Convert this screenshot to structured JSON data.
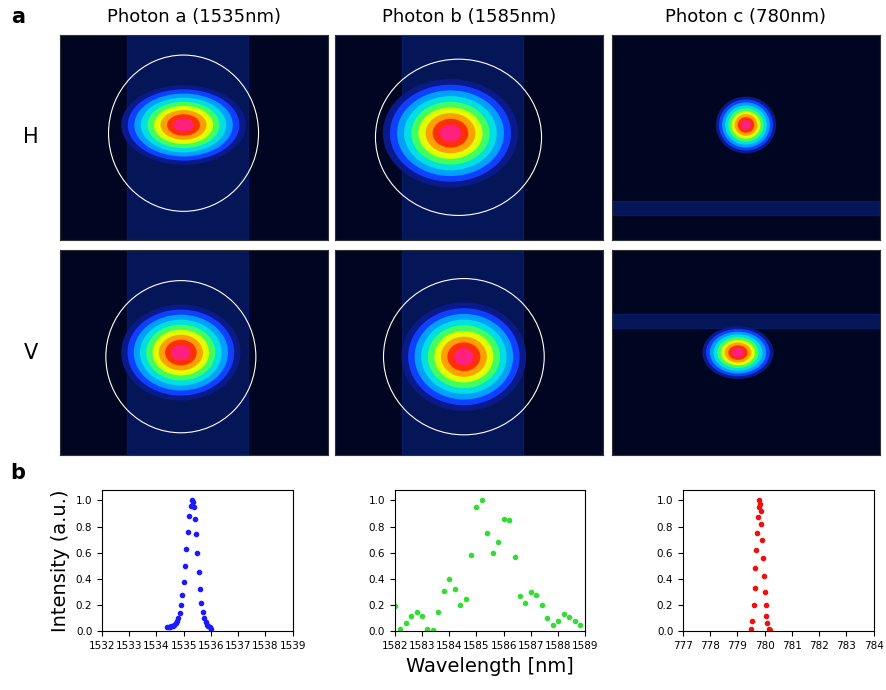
{
  "panel_a": {
    "label": "a",
    "columns": [
      "Photon a (1535nm)",
      "Photon b (1585nm)",
      "Photon c (780nm)"
    ],
    "rows": [
      "H",
      "V"
    ]
  },
  "panel_b": {
    "label": "b"
  },
  "chart_data": [
    {
      "type": "scatter",
      "color": "#1a1aff",
      "marker": "o",
      "y_label": "Intensity (a.u.)",
      "x": [
        1534.4,
        1534.45,
        1534.5,
        1534.55,
        1534.6,
        1534.65,
        1534.7,
        1534.75,
        1534.8,
        1534.85,
        1534.9,
        1534.95,
        1535.0,
        1535.05,
        1535.1,
        1535.15,
        1535.2,
        1535.25,
        1535.3,
        1535.33,
        1535.36,
        1535.4,
        1535.45,
        1535.5,
        1535.55,
        1535.6,
        1535.65,
        1535.7,
        1535.75,
        1535.8,
        1535.85,
        1535.9,
        1535.95,
        1536.0
      ],
      "values": [
        0.03,
        0.03,
        0.035,
        0.04,
        0.04,
        0.05,
        0.06,
        0.08,
        0.1,
        0.14,
        0.2,
        0.28,
        0.38,
        0.5,
        0.63,
        0.76,
        0.88,
        0.96,
        1.0,
        0.99,
        0.95,
        0.86,
        0.74,
        0.6,
        0.45,
        0.32,
        0.22,
        0.15,
        0.1,
        0.07,
        0.05,
        0.04,
        0.03,
        0.02
      ],
      "xlim": [
        1532,
        1539
      ],
      "xticks": [
        1532,
        1533,
        1534,
        1535,
        1536,
        1537,
        1538,
        1539
      ],
      "ylim": [
        0,
        1.08
      ],
      "yticks": [
        {
          "value": 0,
          "label": "0.0"
        },
        {
          "value": 0.2,
          "label": "0.2"
        },
        {
          "value": 0.4,
          "label": "0.4"
        },
        {
          "value": 0.6,
          "label": "0.6"
        },
        {
          "value": 0.8,
          "label": "0.8"
        },
        {
          "value": 1,
          "label": "1.0"
        }
      ]
    },
    {
      "type": "scatter",
      "color": "#33dd33",
      "marker": "o",
      "x_label": "Wavelength [nm]",
      "x": [
        1582.0,
        1582.2,
        1582.4,
        1582.6,
        1582.8,
        1583.0,
        1583.2,
        1583.4,
        1583.6,
        1583.8,
        1584.0,
        1584.2,
        1584.4,
        1584.6,
        1584.8,
        1585.0,
        1585.2,
        1585.4,
        1585.6,
        1585.8,
        1586.0,
        1586.2,
        1586.4,
        1586.6,
        1586.8,
        1587.0,
        1587.2,
        1587.4,
        1587.6,
        1587.8,
        1588.0,
        1588.2,
        1588.4,
        1588.6,
        1588.8
      ],
      "values": [
        0.19,
        0.02,
        0.06,
        0.12,
        0.15,
        0.12,
        0.02,
        0.01,
        0.15,
        0.31,
        0.4,
        0.32,
        0.2,
        0.25,
        0.58,
        0.95,
        1.0,
        0.75,
        0.6,
        0.68,
        0.86,
        0.85,
        0.57,
        0.27,
        0.22,
        0.3,
        0.28,
        0.2,
        0.1,
        0.05,
        0.08,
        0.13,
        0.11,
        0.08,
        0.05
      ],
      "xlim": [
        1582,
        1589
      ],
      "xticks": [
        1582,
        1583,
        1584,
        1585,
        1586,
        1587,
        1588,
        1589
      ],
      "ylim": [
        0,
        1.08
      ],
      "yticks": [
        {
          "value": 0,
          "label": "0.0"
        },
        {
          "value": 0.2,
          "label": "0.2"
        },
        {
          "value": 0.4,
          "label": "0.4"
        },
        {
          "value": 0.6,
          "label": "0.6"
        },
        {
          "value": 0.8,
          "label": "0.8"
        },
        {
          "value": 1,
          "label": "1.0"
        }
      ]
    },
    {
      "type": "scatter",
      "color": "#ee1111",
      "marker": "o",
      "x": [
        779.5,
        779.55,
        779.6,
        779.63,
        779.66,
        779.69,
        779.72,
        779.75,
        779.78,
        779.8,
        779.82,
        779.85,
        779.88,
        779.91,
        779.94,
        779.97,
        780.0,
        780.03,
        780.06,
        780.1,
        780.15,
        780.2
      ],
      "values": [
        0.02,
        0.08,
        0.2,
        0.33,
        0.48,
        0.62,
        0.75,
        0.87,
        0.95,
        1.0,
        0.97,
        0.92,
        0.82,
        0.7,
        0.56,
        0.42,
        0.3,
        0.2,
        0.12,
        0.06,
        0.02,
        0.01
      ],
      "xlim": [
        777,
        784
      ],
      "xticks": [
        777,
        778,
        779,
        780,
        781,
        782,
        783,
        784
      ],
      "ylim": [
        0,
        1.08
      ],
      "yticks": [
        {
          "value": 0,
          "label": "0.0"
        },
        {
          "value": 0.2,
          "label": "0.2"
        },
        {
          "value": 0.4,
          "label": "0.4"
        },
        {
          "value": 0.6,
          "label": "0.6"
        },
        {
          "value": 0.8,
          "label": "0.8"
        },
        {
          "value": 1,
          "label": "1.0"
        }
      ]
    }
  ]
}
